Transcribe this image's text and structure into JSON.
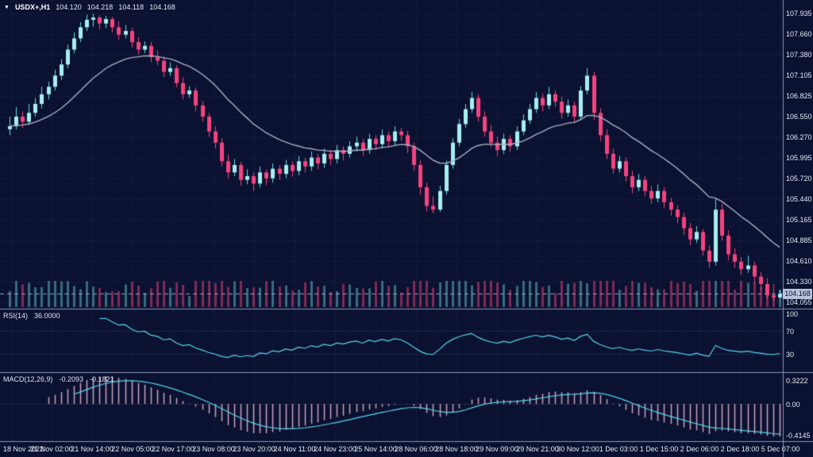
{
  "header": {
    "marker_icon": "▼",
    "symbol_period": "USDX+,H1",
    "open": "104.120",
    "high": "104.218",
    "low": "104.118",
    "close": "104.168"
  },
  "price_axis": {
    "labels": [
      "107.935",
      "107.660",
      "107.380",
      "107.105",
      "106.825",
      "106.550",
      "106.270",
      "105.995",
      "105.720",
      "105.440",
      "105.165",
      "104.885",
      "104.610",
      "104.330",
      "104.055"
    ],
    "current": "104.168"
  },
  "time_axis": {
    "labels": [
      "18 Nov 2022",
      "21 Nov 02:00",
      "21 Nov 14:00",
      "22 Nov 05:00",
      "22 Nov 17:00",
      "23 Nov 08:00",
      "23 Nov 20:00",
      "24 Nov 11:00",
      "24 Nov 23:00",
      "25 Nov 14:00",
      "28 Nov 06:00",
      "28 Nov 18:00",
      "29 Nov 09:00",
      "29 Nov 21:00",
      "30 Nov 12:00",
      "1 Dec 03:00",
      "1 Dec 15:00",
      "2 Dec 06:00",
      "2 Dec 18:00",
      "5 Dec 07:00"
    ]
  },
  "rsi_panel": {
    "label": "RSI(14)",
    "value": "36.0000",
    "axis_labels": [
      "100",
      "70",
      "30"
    ]
  },
  "macd_panel": {
    "label": "MACD(12,26,9)",
    "value_main": "-0.2093",
    "value_signal": "-0.1821",
    "axis_labels": [
      "0.3222",
      "0.00",
      "-0.4145"
    ]
  },
  "colors": {
    "background": "#0b1130",
    "grid": "rgba(125,145,205,0.20)",
    "bull": "#a7eef1",
    "bull_edge": "#5fd9df",
    "bear": "#f4437e",
    "ma_line": "#a9b2c5",
    "indicator_line": "#55d6ee",
    "histogram": "rgba(236,188,214,0.85)",
    "separator": "#8a96ba",
    "axis_text": "#e6ebf7",
    "price_line": "#97a1bc",
    "level_line": "rgba(125,145,205,0.45)",
    "volume_up": "rgba(109,219,224,0.45)",
    "volume_down": "rgba(244,67,126,0.50)",
    "badge_bg": "#b9c2da",
    "badge_text": "#0b1130"
  },
  "chart_data": {
    "type": "candlestick",
    "symbol": "USDX+",
    "timeframe": "H1",
    "last_ohlc": {
      "open": 104.12,
      "high": 104.218,
      "low": 104.118,
      "close": 104.168
    },
    "price_axis_range": [
      104.055,
      107.935
    ],
    "candles": [
      [
        106.38,
        106.55,
        106.3,
        106.42
      ],
      [
        106.42,
        106.68,
        106.38,
        106.55
      ],
      [
        106.55,
        106.62,
        106.4,
        106.48
      ],
      [
        106.48,
        106.72,
        106.44,
        106.6
      ],
      [
        106.6,
        106.8,
        106.55,
        106.72
      ],
      [
        106.72,
        106.95,
        106.66,
        106.85
      ],
      [
        106.85,
        107.02,
        106.78,
        106.95
      ],
      [
        106.95,
        107.18,
        106.9,
        107.1
      ],
      [
        107.1,
        107.32,
        107.04,
        107.25
      ],
      [
        107.25,
        107.52,
        107.2,
        107.45
      ],
      [
        107.45,
        107.68,
        107.4,
        107.6
      ],
      [
        107.6,
        107.82,
        107.55,
        107.75
      ],
      [
        107.75,
        107.92,
        107.7,
        107.85
      ],
      [
        107.85,
        107.93,
        107.76,
        107.88
      ],
      [
        107.88,
        107.91,
        107.72,
        107.8
      ],
      [
        107.8,
        107.9,
        107.74,
        107.86
      ],
      [
        107.86,
        107.89,
        107.68,
        107.75
      ],
      [
        107.75,
        107.83,
        107.58,
        107.65
      ],
      [
        107.65,
        107.78,
        107.6,
        107.7
      ],
      [
        107.7,
        107.74,
        107.48,
        107.55
      ],
      [
        107.55,
        107.62,
        107.38,
        107.45
      ],
      [
        107.45,
        107.56,
        107.4,
        107.5
      ],
      [
        107.5,
        107.55,
        107.28,
        107.35
      ],
      [
        107.35,
        107.44,
        107.24,
        107.3
      ],
      [
        107.3,
        107.36,
        107.08,
        107.15
      ],
      [
        107.15,
        107.28,
        107.1,
        107.2
      ],
      [
        107.2,
        107.24,
        106.94,
        107.0
      ],
      [
        107.0,
        107.08,
        106.78,
        106.85
      ],
      [
        106.85,
        106.96,
        106.8,
        106.9
      ],
      [
        106.9,
        106.94,
        106.62,
        106.7
      ],
      [
        106.7,
        106.76,
        106.48,
        106.55
      ],
      [
        106.55,
        106.6,
        106.28,
        106.35
      ],
      [
        106.35,
        106.42,
        106.12,
        106.2
      ],
      [
        106.2,
        106.26,
        105.88,
        105.95
      ],
      [
        105.95,
        106.04,
        105.72,
        105.8
      ],
      [
        105.8,
        105.98,
        105.75,
        105.9
      ],
      [
        105.9,
        105.94,
        105.62,
        105.7
      ],
      [
        105.7,
        105.84,
        105.64,
        105.75
      ],
      [
        105.75,
        105.8,
        105.55,
        105.65
      ],
      [
        105.65,
        105.88,
        105.6,
        105.8
      ],
      [
        105.8,
        105.84,
        105.63,
        105.72
      ],
      [
        105.72,
        105.92,
        105.66,
        105.85
      ],
      [
        105.85,
        105.9,
        105.7,
        105.78
      ],
      [
        105.78,
        105.97,
        105.72,
        105.9
      ],
      [
        105.9,
        105.95,
        105.74,
        105.82
      ],
      [
        105.82,
        106.02,
        105.76,
        105.95
      ],
      [
        105.95,
        106.0,
        105.8,
        105.88
      ],
      [
        105.88,
        106.08,
        105.82,
        106.0
      ],
      [
        106.0,
        106.05,
        105.84,
        105.92
      ],
      [
        105.92,
        106.12,
        105.86,
        106.05
      ],
      [
        106.05,
        106.1,
        105.9,
        105.98
      ],
      [
        105.98,
        106.17,
        105.92,
        106.1
      ],
      [
        106.1,
        106.15,
        105.96,
        106.05
      ],
      [
        106.05,
        106.22,
        106.0,
        106.15
      ],
      [
        106.15,
        106.28,
        106.08,
        106.2
      ],
      [
        106.2,
        106.25,
        106.02,
        106.1
      ],
      [
        106.1,
        106.32,
        106.05,
        106.25
      ],
      [
        106.25,
        106.3,
        106.1,
        106.18
      ],
      [
        106.18,
        106.38,
        106.12,
        106.3
      ],
      [
        106.3,
        106.35,
        106.14,
        106.22
      ],
      [
        106.22,
        106.42,
        106.16,
        106.35
      ],
      [
        106.35,
        106.4,
        106.22,
        106.3
      ],
      [
        106.3,
        106.36,
        106.06,
        106.15
      ],
      [
        106.15,
        106.2,
        105.82,
        105.9
      ],
      [
        105.9,
        105.96,
        105.5,
        105.6
      ],
      [
        105.6,
        105.66,
        105.28,
        105.35
      ],
      [
        105.35,
        105.48,
        105.25,
        105.3
      ],
      [
        105.3,
        105.62,
        105.27,
        105.55
      ],
      [
        105.55,
        105.96,
        105.5,
        105.9
      ],
      [
        105.9,
        106.26,
        105.85,
        106.2
      ],
      [
        106.2,
        106.52,
        106.15,
        106.45
      ],
      [
        106.45,
        106.72,
        106.4,
        106.65
      ],
      [
        106.65,
        106.88,
        106.6,
        106.8
      ],
      [
        106.8,
        106.85,
        106.48,
        106.55
      ],
      [
        106.55,
        106.62,
        106.28,
        106.35
      ],
      [
        106.35,
        106.44,
        106.14,
        106.2
      ],
      [
        106.2,
        106.28,
        106.02,
        106.1
      ],
      [
        106.1,
        106.32,
        106.05,
        106.25
      ],
      [
        106.25,
        106.3,
        106.08,
        106.15
      ],
      [
        106.15,
        106.42,
        106.1,
        106.35
      ],
      [
        106.35,
        106.58,
        106.3,
        106.5
      ],
      [
        106.5,
        106.72,
        106.45,
        106.65
      ],
      [
        106.65,
        106.88,
        106.6,
        106.8
      ],
      [
        106.8,
        106.86,
        106.62,
        106.7
      ],
      [
        106.7,
        106.95,
        106.65,
        106.85
      ],
      [
        106.85,
        106.9,
        106.68,
        106.75
      ],
      [
        106.75,
        106.82,
        106.52,
        106.6
      ],
      [
        106.6,
        106.78,
        106.55,
        106.7
      ],
      [
        106.7,
        106.75,
        106.47,
        106.55
      ],
      [
        106.55,
        106.96,
        106.5,
        106.9
      ],
      [
        106.9,
        107.2,
        106.85,
        107.1
      ],
      [
        107.1,
        107.15,
        106.5,
        106.6
      ],
      [
        106.6,
        106.66,
        106.22,
        106.3
      ],
      [
        106.3,
        106.38,
        105.98,
        106.05
      ],
      [
        106.05,
        106.12,
        105.78,
        105.85
      ],
      [
        105.85,
        106.02,
        105.8,
        105.95
      ],
      [
        105.95,
        106.0,
        105.68,
        105.75
      ],
      [
        105.75,
        105.82,
        105.52,
        105.6
      ],
      [
        105.6,
        105.78,
        105.55,
        105.7
      ],
      [
        105.7,
        105.75,
        105.48,
        105.55
      ],
      [
        105.55,
        105.62,
        105.38,
        105.45
      ],
      [
        105.45,
        105.64,
        105.4,
        105.55
      ],
      [
        105.55,
        105.6,
        105.32,
        105.4
      ],
      [
        105.4,
        105.46,
        105.22,
        105.3
      ],
      [
        105.3,
        105.36,
        105.12,
        105.2
      ],
      [
        105.2,
        105.26,
        104.96,
        105.05
      ],
      [
        105.05,
        105.12,
        104.82,
        104.9
      ],
      [
        104.9,
        105.08,
        104.85,
        105.0
      ],
      [
        105.0,
        105.04,
        104.68,
        104.75
      ],
      [
        104.75,
        104.82,
        104.52,
        104.6
      ],
      [
        104.6,
        105.45,
        104.55,
        105.3
      ],
      [
        105.3,
        105.38,
        104.88,
        104.95
      ],
      [
        104.95,
        105.02,
        104.62,
        104.7
      ],
      [
        104.7,
        104.78,
        104.52,
        104.6
      ],
      [
        104.6,
        104.66,
        104.42,
        104.5
      ],
      [
        104.5,
        104.68,
        104.45,
        104.55
      ],
      [
        104.55,
        104.6,
        104.32,
        104.4
      ],
      [
        104.4,
        104.46,
        104.22,
        104.3
      ],
      [
        104.3,
        104.38,
        104.1,
        104.15
      ],
      [
        104.15,
        104.3,
        104.08,
        104.12
      ],
      [
        104.12,
        104.218,
        104.118,
        104.168
      ]
    ],
    "indicators": {
      "moving_average": {
        "type": "EMA",
        "period": 21
      },
      "rsi": {
        "period": 14,
        "current": 36.0,
        "levels": [
          70,
          30
        ],
        "range": [
          0,
          100
        ]
      },
      "macd": {
        "fast": 12,
        "slow": 26,
        "signal": 9,
        "current_main": -0.2093,
        "current_signal": -0.1821,
        "axis_range": [
          -0.4145,
          0.3222
        ]
      }
    }
  }
}
